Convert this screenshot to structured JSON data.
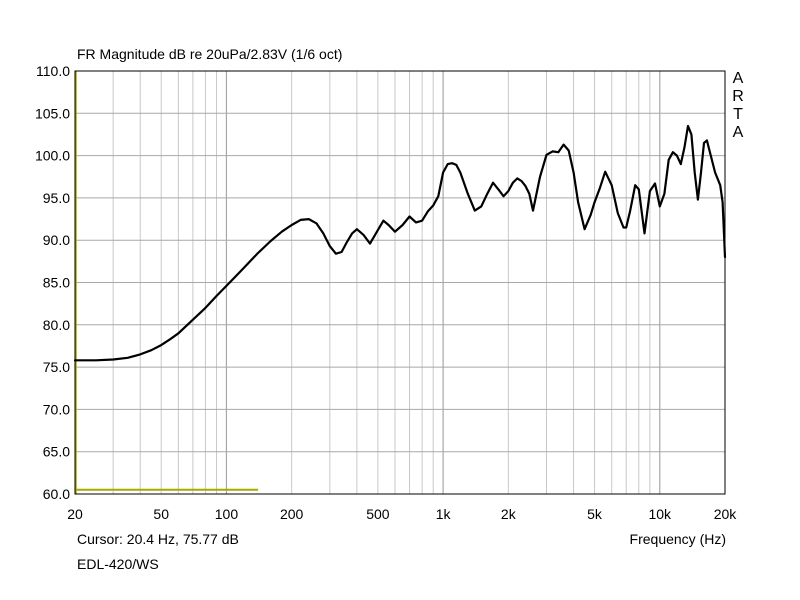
{
  "chart_data": {
    "type": "line",
    "title": "FR Magnitude dB re 20uPa/2.83V (1/6 oct)",
    "xlabel": "Frequency (Hz)",
    "ylabel": "",
    "x_scale": "log",
    "xlim": [
      20,
      20000
    ],
    "ylim": [
      60,
      110
    ],
    "grid": true,
    "y_ticks": [
      "110.0",
      "105.0",
      "100.0",
      "95.0",
      "90.0",
      "85.0",
      "80.0",
      "75.0",
      "70.0",
      "65.0",
      "60.0"
    ],
    "y_tick_values": [
      110,
      105,
      100,
      95,
      90,
      85,
      80,
      75,
      70,
      65,
      60
    ],
    "x_ticks": [
      "20",
      "50",
      "100",
      "200",
      "500",
      "1k",
      "2k",
      "5k",
      "10k",
      "20k"
    ],
    "x_tick_values": [
      20,
      50,
      100,
      200,
      500,
      1000,
      2000,
      5000,
      10000,
      20000
    ],
    "series": [
      {
        "color": "#000000",
        "x": [
          20,
          25,
          30,
          35,
          40,
          45,
          50,
          55,
          60,
          70,
          80,
          90,
          100,
          110,
          120,
          140,
          160,
          180,
          200,
          220,
          240,
          260,
          280,
          300,
          320,
          340,
          360,
          380,
          400,
          430,
          460,
          500,
          530,
          560,
          600,
          650,
          700,
          750,
          800,
          850,
          900,
          950,
          1000,
          1050,
          1100,
          1150,
          1200,
          1300,
          1400,
          1500,
          1600,
          1700,
          1800,
          1900,
          2000,
          2100,
          2200,
          2300,
          2400,
          2500,
          2600,
          2800,
          3000,
          3200,
          3400,
          3600,
          3800,
          4000,
          4200,
          4500,
          4800,
          5000,
          5300,
          5600,
          6000,
          6400,
          6800,
          7000,
          7300,
          7700,
          8000,
          8500,
          9000,
          9500,
          10000,
          10500,
          11000,
          11500,
          12000,
          12500,
          13000,
          13500,
          14000,
          14500,
          15000,
          15500,
          16000,
          16500,
          17000,
          18000,
          19000,
          19500,
          20000
        ],
        "y": [
          75.8,
          75.8,
          75.9,
          76.1,
          76.5,
          77.0,
          77.6,
          78.3,
          79.0,
          80.6,
          82.0,
          83.4,
          84.6,
          85.7,
          86.7,
          88.5,
          89.9,
          91.0,
          91.8,
          92.4,
          92.5,
          92.0,
          90.8,
          89.3,
          88.4,
          88.6,
          89.8,
          90.8,
          91.3,
          90.6,
          89.6,
          91.2,
          92.3,
          91.8,
          91.0,
          91.8,
          92.8,
          92.1,
          92.3,
          93.4,
          94.1,
          95.2,
          98.0,
          99.0,
          99.1,
          98.9,
          98.0,
          95.5,
          93.5,
          94.0,
          95.5,
          96.8,
          96.0,
          95.2,
          95.8,
          96.8,
          97.3,
          97.0,
          96.4,
          95.5,
          93.5,
          97.5,
          100.1,
          100.5,
          100.4,
          101.3,
          100.6,
          98.0,
          94.5,
          91.3,
          93.0,
          94.5,
          96.2,
          98.1,
          96.5,
          93.2,
          91.5,
          91.5,
          93.5,
          96.5,
          96.0,
          90.8,
          95.8,
          96.7,
          94.0,
          95.5,
          99.5,
          100.4,
          100.0,
          99.0,
          101.0,
          103.5,
          102.5,
          98.0,
          94.8,
          98.0,
          101.5,
          101.8,
          100.5,
          98.0,
          96.5,
          94.5,
          88.0
        ]
      }
    ],
    "annotations": [
      "Cursor: 20.4 Hz, 75.77 dB",
      "EDL-420/WS"
    ]
  },
  "cursor_text": "Cursor: 20.4 Hz, 75.77 dB",
  "device_text": "EDL-420/WS",
  "brand_letters": [
    "A",
    "R",
    "T",
    "A"
  ],
  "colors": {
    "curve": "#000000",
    "grid_major": "#a8a8a8",
    "grid_minor": "#c8c8c8",
    "cursor": "#a8a800",
    "frame": "#000000",
    "background": "#ffffff"
  },
  "cursor_marker": {
    "x_from": 20,
    "x_to": 140,
    "y": 60.5
  }
}
